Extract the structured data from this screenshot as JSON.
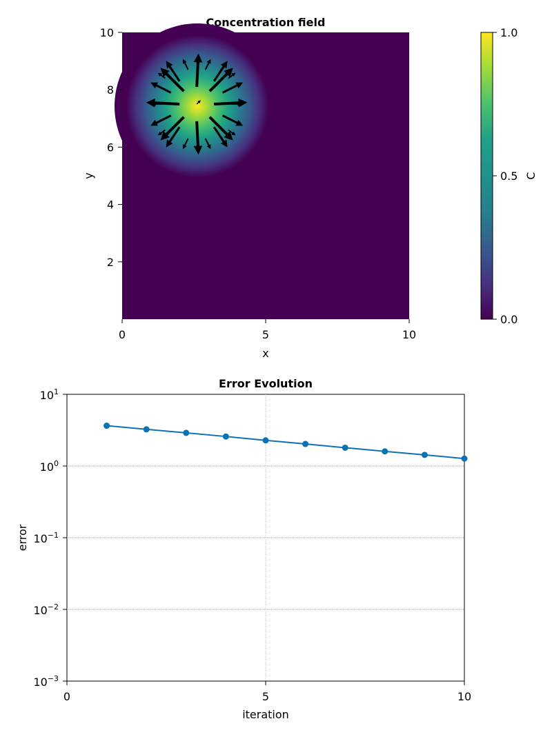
{
  "chart_data": [
    {
      "type": "heatmap",
      "title": "Concentration field",
      "xlabel": "x",
      "ylabel": "y",
      "xlim": [
        0,
        10
      ],
      "ylim": [
        0,
        10
      ],
      "x_ticks": [
        0,
        5,
        10
      ],
      "y_ticks": [
        2,
        4,
        6,
        8,
        10
      ],
      "colormap": "viridis",
      "colorbar": {
        "label": "C",
        "range": [
          0.0,
          1.0
        ],
        "ticks": [
          "0.0",
          "0.5",
          "1.0"
        ]
      },
      "gaussian_blob": {
        "center": [
          2.6,
          7.5
        ],
        "peak": 1.0,
        "background": 0.0
      },
      "quiver": {
        "color": "#000000",
        "origin": [
          2.6,
          7.5
        ],
        "description_free_vectors": [
          {
            "x": 2.6,
            "y": 7.5,
            "u": 0.1,
            "v": 0.1
          },
          {
            "x": 3.2,
            "y": 7.5,
            "u": 1.0,
            "v": 0.05
          },
          {
            "x": 2.0,
            "y": 7.5,
            "u": -1.0,
            "v": 0.05
          },
          {
            "x": 2.6,
            "y": 8.1,
            "u": 0.05,
            "v": 1.0
          },
          {
            "x": 2.6,
            "y": 6.9,
            "u": 0.05,
            "v": -1.0
          },
          {
            "x": 3.05,
            "y": 7.95,
            "u": 0.7,
            "v": 0.7
          },
          {
            "x": 2.15,
            "y": 7.95,
            "u": -0.7,
            "v": 0.7
          },
          {
            "x": 3.05,
            "y": 7.05,
            "u": 0.7,
            "v": -0.7
          },
          {
            "x": 2.15,
            "y": 7.05,
            "u": -0.7,
            "v": -0.7
          },
          {
            "x": 3.2,
            "y": 8.3,
            "u": 0.4,
            "v": 0.6
          },
          {
            "x": 2.0,
            "y": 8.3,
            "u": -0.4,
            "v": 0.6
          },
          {
            "x": 3.2,
            "y": 6.7,
            "u": 0.4,
            "v": -0.6
          },
          {
            "x": 2.0,
            "y": 6.7,
            "u": -0.4,
            "v": -0.6
          },
          {
            "x": 3.5,
            "y": 7.9,
            "u": 0.6,
            "v": 0.3
          },
          {
            "x": 1.7,
            "y": 7.9,
            "u": -0.6,
            "v": 0.3
          },
          {
            "x": 3.5,
            "y": 7.1,
            "u": 0.6,
            "v": -0.3
          },
          {
            "x": 1.7,
            "y": 7.1,
            "u": -0.6,
            "v": -0.3
          },
          {
            "x": 2.9,
            "y": 8.7,
            "u": 0.15,
            "v": 0.3
          },
          {
            "x": 2.3,
            "y": 8.7,
            "u": -0.15,
            "v": 0.3
          },
          {
            "x": 2.9,
            "y": 6.3,
            "u": 0.15,
            "v": -0.3
          },
          {
            "x": 2.3,
            "y": 6.3,
            "u": -0.15,
            "v": -0.3
          },
          {
            "x": 3.8,
            "y": 7.5,
            "u": 0.3,
            "v": 0.0
          },
          {
            "x": 1.4,
            "y": 7.5,
            "u": -0.3,
            "v": 0.0
          },
          {
            "x": 3.7,
            "y": 8.4,
            "u": 0.2,
            "v": 0.15
          },
          {
            "x": 1.5,
            "y": 8.4,
            "u": -0.2,
            "v": 0.15
          },
          {
            "x": 3.7,
            "y": 6.6,
            "u": 0.2,
            "v": -0.15
          },
          {
            "x": 1.5,
            "y": 6.6,
            "u": -0.2,
            "v": -0.15
          }
        ]
      }
    },
    {
      "type": "line",
      "title": "Error Evolution",
      "xlabel": "iteration",
      "ylabel": "error",
      "xlim": [
        0,
        10
      ],
      "ylim": [
        0.001,
        10
      ],
      "yscale": "log",
      "grid": true,
      "x_ticks": [
        0,
        5,
        10
      ],
      "y_ticks": [
        {
          "value": 10,
          "base": "10",
          "exp": "1"
        },
        {
          "value": 1,
          "base": "10",
          "exp": "0"
        },
        {
          "value": 0.1,
          "base": "10",
          "exp": "−1"
        },
        {
          "value": 0.01,
          "base": "10",
          "exp": "−2"
        },
        {
          "value": 0.001,
          "base": "10",
          "exp": "−3"
        }
      ],
      "series": [
        {
          "color": "#0b72b4",
          "markers": true,
          "x": [
            1,
            2,
            3,
            4,
            5,
            6,
            7,
            8,
            9,
            10
          ],
          "y": [
            3.65,
            3.25,
            2.9,
            2.58,
            2.28,
            2.03,
            1.8,
            1.6,
            1.43,
            1.27
          ]
        }
      ]
    }
  ]
}
